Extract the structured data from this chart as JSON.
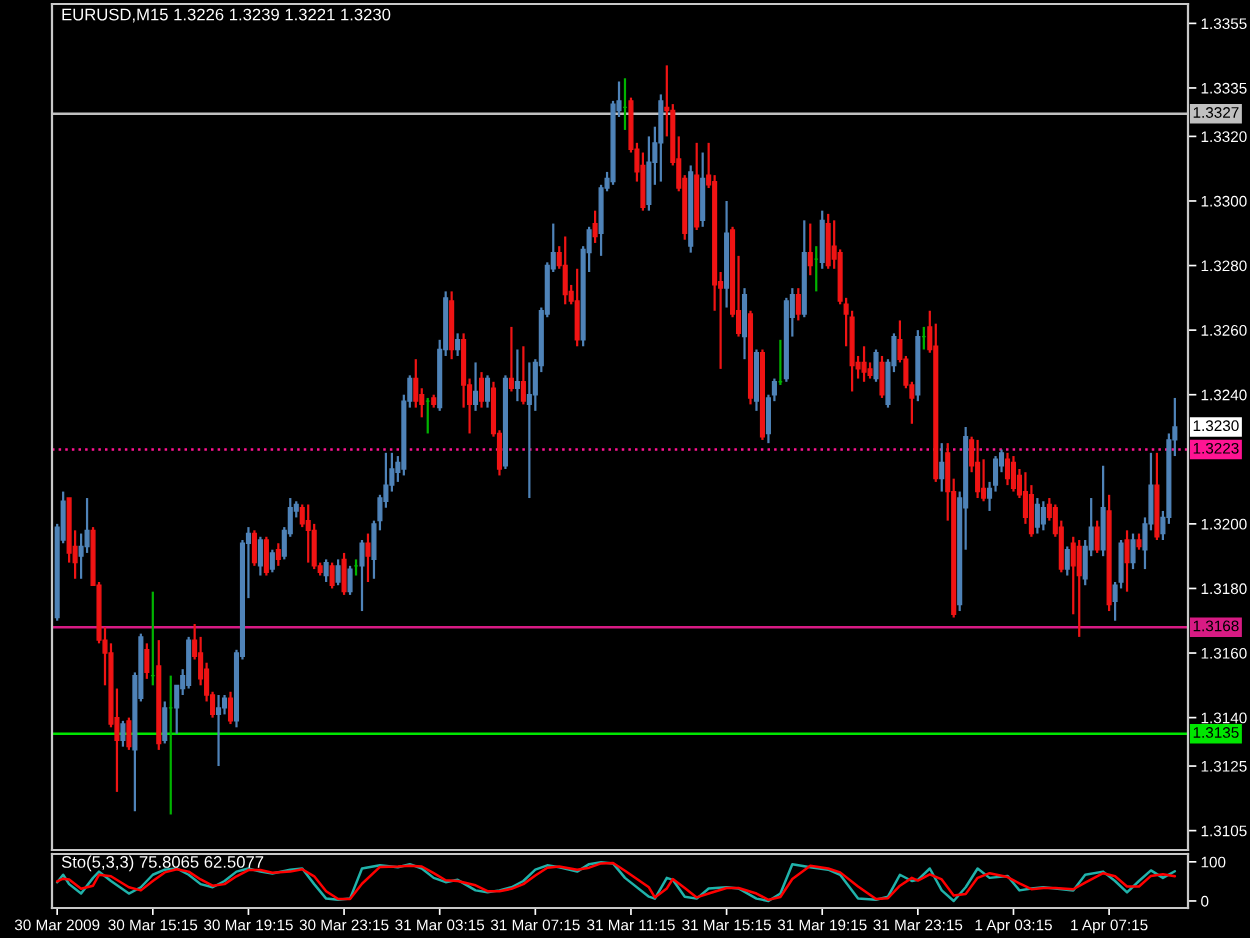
{
  "chart_data": [
    {
      "type": "candlestick",
      "title": "EURUSD,M15 1.3226 1.3239 1.3221 1.3230",
      "x": [
        "2009-03-30T11:15",
        "2009-03-30T11:30",
        "2009-03-30T11:45",
        "2009-03-30T12:00",
        "2009-03-30T12:15",
        "2009-03-30T12:30",
        "2009-03-30T12:45",
        "2009-03-30T13:00",
        "2009-03-30T13:15",
        "2009-03-30T13:30",
        "2009-03-30T13:45",
        "2009-03-30T14:00",
        "2009-03-30T14:15",
        "2009-03-30T14:30",
        "2009-03-30T14:45",
        "2009-03-30T15:00",
        "2009-03-30T15:15",
        "2009-03-30T15:30",
        "2009-03-30T15:45",
        "2009-03-30T16:00",
        "2009-03-30T16:15",
        "2009-03-30T16:30",
        "2009-03-30T16:45",
        "2009-03-30T17:00",
        "2009-03-30T17:15",
        "2009-03-30T17:30",
        "2009-03-30T17:45",
        "2009-03-30T18:00",
        "2009-03-30T18:15",
        "2009-03-30T18:30",
        "2009-03-30T18:45",
        "2009-03-30T19:00",
        "2009-03-30T19:15",
        "2009-03-30T19:30",
        "2009-03-30T19:45",
        "2009-03-30T20:00",
        "2009-03-30T20:15",
        "2009-03-30T20:30",
        "2009-03-30T20:45",
        "2009-03-30T21:00",
        "2009-03-30T21:15",
        "2009-03-30T21:30",
        "2009-03-30T21:45",
        "2009-03-30T22:00",
        "2009-03-30T22:15",
        "2009-03-30T22:30",
        "2009-03-30T22:45",
        "2009-03-30T23:00",
        "2009-03-30T23:15",
        "2009-03-30T23:30",
        "2009-03-30T23:45",
        "2009-03-31T00:00",
        "2009-03-31T00:15",
        "2009-03-31T00:30",
        "2009-03-31T00:45",
        "2009-03-31T01:00",
        "2009-03-31T01:15",
        "2009-03-31T01:30",
        "2009-03-31T01:45",
        "2009-03-31T02:00",
        "2009-03-31T02:15",
        "2009-03-31T02:30",
        "2009-03-31T02:45",
        "2009-03-31T03:00",
        "2009-03-31T03:15",
        "2009-03-31T03:30",
        "2009-03-31T03:45",
        "2009-03-31T04:00",
        "2009-03-31T04:15",
        "2009-03-31T04:30",
        "2009-03-31T04:45",
        "2009-03-31T05:00",
        "2009-03-31T05:15",
        "2009-03-31T05:30",
        "2009-03-31T05:45",
        "2009-03-31T06:00",
        "2009-03-31T06:15",
        "2009-03-31T06:30",
        "2009-03-31T06:45",
        "2009-03-31T07:00",
        "2009-03-31T07:15",
        "2009-03-31T07:30",
        "2009-03-31T07:45",
        "2009-03-31T08:00",
        "2009-03-31T08:15",
        "2009-03-31T08:30",
        "2009-03-31T08:45",
        "2009-03-31T09:00",
        "2009-03-31T09:15",
        "2009-03-31T09:30",
        "2009-03-31T09:45",
        "2009-03-31T10:00",
        "2009-03-31T10:15",
        "2009-03-31T10:30",
        "2009-03-31T10:45",
        "2009-03-31T11:00",
        "2009-03-31T11:15",
        "2009-03-31T11:30",
        "2009-03-31T11:45",
        "2009-03-31T12:00",
        "2009-03-31T12:15",
        "2009-03-31T12:30",
        "2009-03-31T12:45",
        "2009-03-31T13:00",
        "2009-03-31T13:15",
        "2009-03-31T13:30",
        "2009-03-31T13:45",
        "2009-03-31T14:00",
        "2009-03-31T14:15",
        "2009-03-31T14:30",
        "2009-03-31T14:45",
        "2009-03-31T15:00",
        "2009-03-31T15:15",
        "2009-03-31T15:30",
        "2009-03-31T15:45",
        "2009-03-31T16:00",
        "2009-03-31T16:15",
        "2009-03-31T16:30",
        "2009-03-31T16:45",
        "2009-03-31T17:00",
        "2009-03-31T17:15",
        "2009-03-31T17:30",
        "2009-03-31T17:45",
        "2009-03-31T18:00",
        "2009-03-31T18:15",
        "2009-03-31T18:30",
        "2009-03-31T18:45",
        "2009-03-31T19:00",
        "2009-03-31T19:15",
        "2009-03-31T19:30",
        "2009-03-31T19:45",
        "2009-03-31T20:00",
        "2009-03-31T20:15",
        "2009-03-31T20:30",
        "2009-03-31T20:45",
        "2009-03-31T21:00",
        "2009-03-31T21:15",
        "2009-03-31T21:30",
        "2009-03-31T21:45",
        "2009-03-31T22:00",
        "2009-03-31T22:15",
        "2009-03-31T22:30",
        "2009-03-31T22:45",
        "2009-03-31T23:00",
        "2009-03-31T23:15",
        "2009-03-31T23:30",
        "2009-03-31T23:45",
        "2009-04-01T00:00",
        "2009-04-01T00:15",
        "2009-04-01T00:30",
        "2009-04-01T00:45",
        "2009-04-01T01:00",
        "2009-04-01T01:15",
        "2009-04-01T01:30",
        "2009-04-01T01:45",
        "2009-04-01T02:00",
        "2009-04-01T02:15",
        "2009-04-01T02:30",
        "2009-04-01T02:45",
        "2009-04-01T03:00",
        "2009-04-01T03:15",
        "2009-04-01T03:30",
        "2009-04-01T03:45",
        "2009-04-01T04:00",
        "2009-04-01T04:15",
        "2009-04-01T04:30",
        "2009-04-01T04:45",
        "2009-04-01T05:00",
        "2009-04-01T05:15",
        "2009-04-01T05:30",
        "2009-04-01T05:45",
        "2009-04-01T06:00",
        "2009-04-01T06:15",
        "2009-04-01T06:30",
        "2009-04-01T06:45",
        "2009-04-01T07:00",
        "2009-04-01T07:15",
        "2009-04-01T07:30",
        "2009-04-01T07:45",
        "2009-04-01T08:00",
        "2009-04-01T08:15",
        "2009-04-01T08:30",
        "2009-04-01T08:45",
        "2009-04-01T09:00",
        "2009-04-01T09:15",
        "2009-04-01T09:30",
        "2009-04-01T09:45",
        "2009-04-01T10:00"
      ],
      "ohlc": [
        [
          1.3171,
          1.32,
          1.317,
          1.3199
        ],
        [
          1.3195,
          1.321,
          1.3194,
          1.3207
        ],
        [
          1.3208,
          1.3208,
          1.3188,
          1.3191
        ],
        [
          1.3193,
          1.3198,
          1.3183,
          1.3188
        ],
        [
          1.319,
          1.3197,
          1.3183,
          1.3193
        ],
        [
          1.3193,
          1.3208,
          1.3191,
          1.3198
        ],
        [
          1.3198,
          1.3199,
          1.3181,
          1.3181
        ],
        [
          1.3181,
          1.3182,
          1.3163,
          1.3164
        ],
        [
          1.3164,
          1.3168,
          1.315,
          1.316
        ],
        [
          1.316,
          1.3163,
          1.3137,
          1.3138
        ],
        [
          1.314,
          1.3149,
          1.3117,
          1.3133
        ],
        [
          1.3133,
          1.3139,
          1.3131,
          1.3138
        ],
        [
          1.3139,
          1.314,
          1.313,
          1.3131
        ],
        [
          1.313,
          1.3154,
          1.3111,
          1.3153
        ],
        [
          1.3146,
          1.3166,
          1.3145,
          1.3165
        ],
        [
          1.3161,
          1.3163,
          1.3152,
          1.3154
        ],
        [
          1.3153,
          1.3179,
          1.315,
          1.3153
        ],
        [
          1.3156,
          1.3164,
          1.313,
          1.3132
        ],
        [
          1.3133,
          1.3145,
          1.3132,
          1.3143
        ],
        [
          1.3143,
          1.3153,
          1.311,
          1.3143
        ],
        [
          1.3143,
          1.315,
          1.3135,
          1.315
        ],
        [
          1.3149,
          1.3155,
          1.3147,
          1.3153
        ],
        [
          1.315,
          1.3165,
          1.3149,
          1.3164
        ],
        [
          1.3164,
          1.3169,
          1.3158,
          1.3159
        ],
        [
          1.316,
          1.3165,
          1.315,
          1.3152
        ],
        [
          1.3155,
          1.3157,
          1.3145,
          1.3147
        ],
        [
          1.3147,
          1.3148,
          1.314,
          1.3141
        ],
        [
          1.3141,
          1.3147,
          1.3125,
          1.3143
        ],
        [
          1.3143,
          1.3147,
          1.3141,
          1.3146
        ],
        [
          1.3146,
          1.3148,
          1.3138,
          1.3139
        ],
        [
          1.3139,
          1.3161,
          1.3137,
          1.316
        ],
        [
          1.3159,
          1.3195,
          1.3158,
          1.3194
        ],
        [
          1.3194,
          1.3199,
          1.3177,
          1.3197
        ],
        [
          1.3197,
          1.3198,
          1.3187,
          1.3188
        ],
        [
          1.3187,
          1.3196,
          1.3184,
          1.3195
        ],
        [
          1.3195,
          1.3196,
          1.3184,
          1.3185
        ],
        [
          1.3186,
          1.3192,
          1.3185,
          1.3191
        ],
        [
          1.3192,
          1.3194,
          1.3187,
          1.3189
        ],
        [
          1.319,
          1.3199,
          1.3189,
          1.3198
        ],
        [
          1.3197,
          1.3208,
          1.3196,
          1.3205
        ],
        [
          1.3204,
          1.3207,
          1.3202,
          1.3206
        ],
        [
          1.3205,
          1.3206,
          1.3199,
          1.32
        ],
        [
          1.3201,
          1.3206,
          1.3188,
          1.3198
        ],
        [
          1.3198,
          1.32,
          1.3186,
          1.3187
        ],
        [
          1.3187,
          1.3188,
          1.3184,
          1.3185
        ],
        [
          1.3184,
          1.3189,
          1.3182,
          1.3188
        ],
        [
          1.3187,
          1.3188,
          1.318,
          1.3181
        ],
        [
          1.3182,
          1.3189,
          1.3181,
          1.3187
        ],
        [
          1.3189,
          1.3191,
          1.3178,
          1.3179
        ],
        [
          1.3179,
          1.3187,
          1.3178,
          1.3186
        ],
        [
          1.3187,
          1.3189,
          1.3184,
          1.3187
        ],
        [
          1.3187,
          1.3195,
          1.3173,
          1.3194
        ],
        [
          1.3194,
          1.3197,
          1.3182,
          1.319
        ],
        [
          1.3189,
          1.3201,
          1.3183,
          1.32
        ],
        [
          1.3201,
          1.3209,
          1.3198,
          1.3208
        ],
        [
          1.3207,
          1.3222,
          1.3205,
          1.3212
        ],
        [
          1.3212,
          1.3222,
          1.321,
          1.3217
        ],
        [
          1.3216,
          1.3221,
          1.3213,
          1.3219
        ],
        [
          1.3217,
          1.324,
          1.3215,
          1.3238
        ],
        [
          1.3238,
          1.3246,
          1.3236,
          1.3245
        ],
        [
          1.3245,
          1.3251,
          1.3236,
          1.3238
        ],
        [
          1.324,
          1.3242,
          1.3233,
          1.3237
        ],
        [
          1.3238,
          1.3239,
          1.3228,
          1.3238
        ],
        [
          1.3239,
          1.324,
          1.3236,
          1.3237
        ],
        [
          1.3236,
          1.3257,
          1.3235,
          1.3254
        ],
        [
          1.3254,
          1.3272,
          1.3252,
          1.327
        ],
        [
          1.3269,
          1.3272,
          1.3251,
          1.3254
        ],
        [
          1.3254,
          1.3259,
          1.3252,
          1.3257
        ],
        [
          1.3257,
          1.3259,
          1.3236,
          1.3243
        ],
        [
          1.3243,
          1.3245,
          1.3228,
          1.3237
        ],
        [
          1.3237,
          1.325,
          1.3235,
          1.3241
        ],
        [
          1.3245,
          1.3247,
          1.3236,
          1.3238
        ],
        [
          1.3238,
          1.3246,
          1.3236,
          1.3245
        ],
        [
          1.3242,
          1.3244,
          1.3227,
          1.3228
        ],
        [
          1.3228,
          1.3229,
          1.3215,
          1.3217
        ],
        [
          1.3218,
          1.3246,
          1.3217,
          1.3245
        ],
        [
          1.3245,
          1.3261,
          1.3241,
          1.3242
        ],
        [
          1.3242,
          1.3254,
          1.3238,
          1.3244
        ],
        [
          1.3244,
          1.3255,
          1.3237,
          1.3238
        ],
        [
          1.3237,
          1.325,
          1.3208,
          1.324
        ],
        [
          1.324,
          1.3251,
          1.3235,
          1.325
        ],
        [
          1.3249,
          1.3267,
          1.3247,
          1.3266
        ],
        [
          1.3265,
          1.3281,
          1.3264,
          1.328
        ],
        [
          1.3279,
          1.3293,
          1.3278,
          1.3284
        ],
        [
          1.3284,
          1.3286,
          1.3279,
          1.328
        ],
        [
          1.328,
          1.3289,
          1.3268,
          1.3271
        ],
        [
          1.3272,
          1.3274,
          1.3268,
          1.3269
        ],
        [
          1.3269,
          1.3279,
          1.3255,
          1.3257
        ],
        [
          1.3257,
          1.3286,
          1.3255,
          1.3285
        ],
        [
          1.3284,
          1.3292,
          1.3278,
          1.3291
        ],
        [
          1.3293,
          1.3297,
          1.3287,
          1.3289
        ],
        [
          1.329,
          1.3305,
          1.3283,
          1.3304
        ],
        [
          1.3304,
          1.3309,
          1.3303,
          1.3307
        ],
        [
          1.3306,
          1.3331,
          1.3305,
          1.333
        ],
        [
          1.3328,
          1.3337,
          1.3326,
          1.3331
        ],
        [
          1.3329,
          1.3338,
          1.3322,
          1.3329
        ],
        [
          1.3331,
          1.3332,
          1.3315,
          1.3316
        ],
        [
          1.3316,
          1.3318,
          1.3306,
          1.3309
        ],
        [
          1.3311,
          1.3315,
          1.3297,
          1.3298
        ],
        [
          1.3299,
          1.332,
          1.3297,
          1.3312
        ],
        [
          1.3312,
          1.3323,
          1.3305,
          1.3318
        ],
        [
          1.3318,
          1.3333,
          1.3306,
          1.3331
        ],
        [
          1.3329,
          1.3342,
          1.332,
          1.3328
        ],
        [
          1.3328,
          1.333,
          1.3311,
          1.3312
        ],
        [
          1.3313,
          1.332,
          1.3303,
          1.3304
        ],
        [
          1.3307,
          1.3308,
          1.3288,
          1.329
        ],
        [
          1.3286,
          1.3311,
          1.3284,
          1.3309
        ],
        [
          1.3308,
          1.3318,
          1.3291,
          1.3292
        ],
        [
          1.3294,
          1.3315,
          1.3292,
          1.3307
        ],
        [
          1.3308,
          1.3318,
          1.3304,
          1.3305
        ],
        [
          1.3306,
          1.3308,
          1.3266,
          1.3274
        ],
        [
          1.3275,
          1.3278,
          1.3248,
          1.3273
        ],
        [
          1.3273,
          1.33,
          1.3267,
          1.329
        ],
        [
          1.3291,
          1.3292,
          1.3264,
          1.3265
        ],
        [
          1.3266,
          1.3283,
          1.3258,
          1.3259
        ],
        [
          1.3258,
          1.3273,
          1.3251,
          1.3271
        ],
        [
          1.3265,
          1.3266,
          1.3237,
          1.3239
        ],
        [
          1.3238,
          1.3254,
          1.3235,
          1.3253
        ],
        [
          1.3253,
          1.3254,
          1.3226,
          1.3227
        ],
        [
          1.3228,
          1.324,
          1.3225,
          1.3239
        ],
        [
          1.324,
          1.3245,
          1.3238,
          1.3244
        ],
        [
          1.3244,
          1.3257,
          1.3243,
          1.3244
        ],
        [
          1.3245,
          1.327,
          1.3244,
          1.3269
        ],
        [
          1.3264,
          1.3273,
          1.3258,
          1.3271
        ],
        [
          1.3271,
          1.3273,
          1.3263,
          1.3265
        ],
        [
          1.3265,
          1.3294,
          1.3264,
          1.3284
        ],
        [
          1.3284,
          1.3293,
          1.3277,
          1.328
        ],
        [
          1.3282,
          1.3286,
          1.3272,
          1.3282
        ],
        [
          1.3281,
          1.3297,
          1.3279,
          1.3294
        ],
        [
          1.3293,
          1.3296,
          1.3279,
          1.328
        ],
        [
          1.3286,
          1.3294,
          1.3279,
          1.3282
        ],
        [
          1.3284,
          1.3285,
          1.3268,
          1.3269
        ],
        [
          1.3268,
          1.327,
          1.3255,
          1.3265
        ],
        [
          1.3264,
          1.3266,
          1.3241,
          1.3249
        ],
        [
          1.325,
          1.3252,
          1.3245,
          1.3248
        ],
        [
          1.325,
          1.3255,
          1.3244,
          1.3247
        ],
        [
          1.3248,
          1.325,
          1.3245,
          1.3246
        ],
        [
          1.3245,
          1.3254,
          1.3244,
          1.3253
        ],
        [
          1.325,
          1.3252,
          1.3239,
          1.324
        ],
        [
          1.3237,
          1.3251,
          1.3236,
          1.325
        ],
        [
          1.3249,
          1.3259,
          1.3247,
          1.3258
        ],
        [
          1.3257,
          1.3263,
          1.325,
          1.3251
        ],
        [
          1.3251,
          1.3252,
          1.3242,
          1.3243
        ],
        [
          1.3243,
          1.3244,
          1.3231,
          1.3239
        ],
        [
          1.324,
          1.326,
          1.3238,
          1.3258
        ],
        [
          1.3258,
          1.3261,
          1.3254,
          1.3258
        ],
        [
          1.3261,
          1.3266,
          1.3253,
          1.3254
        ],
        [
          1.3255,
          1.3262,
          1.3213,
          1.3214
        ],
        [
          1.3214,
          1.3225,
          1.321,
          1.3219
        ],
        [
          1.3222,
          1.3225,
          1.3201,
          1.321
        ],
        [
          1.321,
          1.3214,
          1.3171,
          1.3172
        ],
        [
          1.3175,
          1.321,
          1.3173,
          1.3208
        ],
        [
          1.3205,
          1.323,
          1.3192,
          1.3227
        ],
        [
          1.3226,
          1.3227,
          1.3216,
          1.3218
        ],
        [
          1.3219,
          1.3226,
          1.3208,
          1.321
        ],
        [
          1.3211,
          1.322,
          1.3207,
          1.3208
        ],
        [
          1.3208,
          1.3213,
          1.3204,
          1.3211
        ],
        [
          1.3212,
          1.3221,
          1.321,
          1.322
        ],
        [
          1.3218,
          1.3223,
          1.3216,
          1.3222
        ],
        [
          1.322,
          1.3222,
          1.3212,
          1.3214
        ],
        [
          1.3219,
          1.3221,
          1.321,
          1.3211
        ],
        [
          1.3215,
          1.3217,
          1.3208,
          1.3209
        ],
        [
          1.321,
          1.3216,
          1.32,
          1.3202
        ],
        [
          1.3209,
          1.3212,
          1.3196,
          1.3197
        ],
        [
          1.3199,
          1.3208,
          1.3197,
          1.3206
        ],
        [
          1.32,
          1.3207,
          1.3198,
          1.3205
        ],
        [
          1.3206,
          1.3208,
          1.3201,
          1.3202
        ],
        [
          1.3205,
          1.3206,
          1.3196,
          1.3197
        ],
        [
          1.3199,
          1.3201,
          1.3185,
          1.3186
        ],
        [
          1.3186,
          1.3193,
          1.3184,
          1.3192
        ],
        [
          1.3194,
          1.3196,
          1.3172,
          1.3187
        ],
        [
          1.3193,
          1.3195,
          1.3165,
          1.3184
        ],
        [
          1.3183,
          1.3195,
          1.3181,
          1.3193
        ],
        [
          1.3192,
          1.3208,
          1.319,
          1.3199
        ],
        [
          1.3199,
          1.3201,
          1.3191,
          1.3192
        ],
        [
          1.3192,
          1.3218,
          1.319,
          1.3205
        ],
        [
          1.3204,
          1.3209,
          1.3173,
          1.3175
        ],
        [
          1.3176,
          1.3182,
          1.317,
          1.3181
        ],
        [
          1.3182,
          1.3195,
          1.318,
          1.3194
        ],
        [
          1.3195,
          1.3198,
          1.3179,
          1.3188
        ],
        [
          1.3188,
          1.3197,
          1.3186,
          1.3195
        ],
        [
          1.3195,
          1.3197,
          1.3192,
          1.3193
        ],
        [
          1.3192,
          1.3202,
          1.3186,
          1.32
        ],
        [
          1.32,
          1.3222,
          1.3198,
          1.3212
        ],
        [
          1.3212,
          1.3222,
          1.3195,
          1.3196
        ],
        [
          1.3197,
          1.3204,
          1.3195,
          1.3202
        ],
        [
          1.3202,
          1.3228,
          1.32,
          1.3226
        ],
        [
          1.3226,
          1.3239,
          1.3221,
          1.323
        ]
      ],
      "colors": [
        "#4f83b8",
        "#4f83b8",
        "#f01414",
        "#f01414",
        "#4f83b8",
        "#4f83b8",
        "#f01414",
        "#f01414",
        "#f01414",
        "#f01414",
        "#f01414",
        "#4f83b8",
        "#f01414",
        "#4f83b8",
        "#4f83b8",
        "#f01414",
        "#00b400",
        "#f01414",
        "#4f83b8",
        "#00b400",
        "#4f83b8",
        "#4f83b8",
        "#4f83b8",
        "#f01414",
        "#f01414",
        "#f01414",
        "#f01414",
        "#4f83b8",
        "#4f83b8",
        "#f01414",
        "#4f83b8",
        "#4f83b8",
        "#4f83b8",
        "#f01414",
        "#4f83b8",
        "#f01414",
        "#4f83b8",
        "#f01414",
        "#4f83b8",
        "#4f83b8",
        "#4f83b8",
        "#f01414",
        "#f01414",
        "#f01414",
        "#f01414",
        "#4f83b8",
        "#f01414",
        "#4f83b8",
        "#f01414",
        "#4f83b8",
        "#00b400",
        "#4f83b8",
        "#f01414",
        "#4f83b8",
        "#4f83b8",
        "#4f83b8",
        "#4f83b8",
        "#4f83b8",
        "#4f83b8",
        "#4f83b8",
        "#f01414",
        "#f01414",
        "#00b400",
        "#f01414",
        "#4f83b8",
        "#4f83b8",
        "#f01414",
        "#4f83b8",
        "#f01414",
        "#f01414",
        "#4f83b8",
        "#f01414",
        "#4f83b8",
        "#f01414",
        "#f01414",
        "#4f83b8",
        "#f01414",
        "#4f83b8",
        "#f01414",
        "#4f83b8",
        "#4f83b8",
        "#4f83b8",
        "#4f83b8",
        "#4f83b8",
        "#f01414",
        "#f01414",
        "#f01414",
        "#f01414",
        "#4f83b8",
        "#4f83b8",
        "#f01414",
        "#4f83b8",
        "#4f83b8",
        "#4f83b8",
        "#4f83b8",
        "#00b400",
        "#f01414",
        "#f01414",
        "#f01414",
        "#4f83b8",
        "#4f83b8",
        "#4f83b8",
        "#f01414",
        "#f01414",
        "#f01414",
        "#f01414",
        "#4f83b8",
        "#f01414",
        "#4f83b8",
        "#f01414",
        "#f01414",
        "#f01414",
        "#4f83b8",
        "#f01414",
        "#f01414",
        "#4f83b8",
        "#f01414",
        "#4f83b8",
        "#f01414",
        "#4f83b8",
        "#4f83b8",
        "#00b400",
        "#4f83b8",
        "#4f83b8",
        "#f01414",
        "#4f83b8",
        "#f01414",
        "#00b400",
        "#4f83b8",
        "#f01414",
        "#f01414",
        "#f01414",
        "#f01414",
        "#f01414",
        "#f01414",
        "#f01414",
        "#f01414",
        "#4f83b8",
        "#f01414",
        "#4f83b8",
        "#4f83b8",
        "#f01414",
        "#f01414",
        "#f01414",
        "#4f83b8",
        "#00b400",
        "#f01414",
        "#f01414",
        "#4f83b8",
        "#f01414",
        "#f01414",
        "#4f83b8",
        "#4f83b8",
        "#f01414",
        "#f01414",
        "#f01414",
        "#4f83b8",
        "#4f83b8",
        "#4f83b8",
        "#f01414",
        "#f01414",
        "#f01414",
        "#f01414",
        "#f01414",
        "#4f83b8",
        "#4f83b8",
        "#f01414",
        "#f01414",
        "#f01414",
        "#4f83b8",
        "#f01414",
        "#f01414",
        "#4f83b8",
        "#4f83b8",
        "#f01414",
        "#4f83b8",
        "#f01414",
        "#4f83b8",
        "#4f83b8",
        "#f01414",
        "#4f83b8",
        "#f01414",
        "#4f83b8",
        "#4f83b8",
        "#f01414",
        "#4f83b8",
        "#4f83b8",
        "#4f83b8"
      ],
      "xlim": [
        "2009-03-30T11:02",
        "2009-04-01T10:33"
      ],
      "ylim": [
        1.3099,
        1.3361
      ],
      "yticks": [
        {
          "value": 1.3105,
          "label": "1.3105"
        },
        {
          "value": 1.3125,
          "label": "1.3125"
        },
        {
          "value": 1.314,
          "label": "1.3140"
        },
        {
          "value": 1.316,
          "label": "1.3160"
        },
        {
          "value": 1.318,
          "label": "1.3180"
        },
        {
          "value": 1.32,
          "label": "1.3200"
        },
        {
          "value": 1.324,
          "label": "1.3240"
        },
        {
          "value": 1.326,
          "label": "1.3260"
        },
        {
          "value": 1.328,
          "label": "1.3280"
        },
        {
          "value": 1.33,
          "label": "1.3300"
        },
        {
          "value": 1.332,
          "label": "1.3320"
        },
        {
          "value": 1.3335,
          "label": "1.3335"
        },
        {
          "value": 1.3355,
          "label": "1.3355"
        }
      ],
      "tick_labels": "y",
      "ref_lines": [
        {
          "axis": "y",
          "value": 1.3327,
          "label": "1.3327",
          "color": "#c0c0c0",
          "line_style": "solid"
        },
        {
          "axis": "y",
          "value": 1.3223,
          "label": "1.3223",
          "color": "#ff1493",
          "line_style": "dotted"
        },
        {
          "axis": "y",
          "value": 1.3168,
          "label": "1.3168",
          "color": "#d81b84",
          "line_style": "solid"
        },
        {
          "axis": "y",
          "value": 1.3135,
          "label": "1.3135",
          "color": "#00e600",
          "line_style": "solid"
        }
      ],
      "annotations": [
        {
          "text": "1.3230",
          "y": 1.323
        }
      ]
    },
    {
      "type": "line",
      "title": "Sto(5,3,3) 75.8065 62.5077",
      "x": [
        "2009-03-30T11:15",
        "2009-03-30T11:30",
        "2009-03-30T11:45",
        "2009-03-30T12:15",
        "2009-03-30T12:45",
        "2009-03-30T13:00",
        "2009-03-30T13:30",
        "2009-03-30T14:15",
        "2009-03-30T14:45",
        "2009-03-30T15:15",
        "2009-03-30T15:45",
        "2009-03-30T16:15",
        "2009-03-30T16:45",
        "2009-03-30T17:15",
        "2009-03-30T17:45",
        "2009-03-30T18:15",
        "2009-03-30T18:45",
        "2009-03-30T19:15",
        "2009-03-30T19:45",
        "2009-03-30T20:15",
        "2009-03-30T21:00",
        "2009-03-30T21:30",
        "2009-03-30T22:00",
        "2009-03-30T22:30",
        "2009-03-30T23:00",
        "2009-03-30T23:30",
        "2009-03-31T00:00",
        "2009-03-31T00:45",
        "2009-03-31T01:30",
        "2009-03-31T02:00",
        "2009-03-31T02:30",
        "2009-03-31T03:00",
        "2009-03-31T03:30",
        "2009-03-31T04:00",
        "2009-03-31T04:45",
        "2009-03-31T05:15",
        "2009-03-31T05:45",
        "2009-03-31T06:15",
        "2009-03-31T06:45",
        "2009-03-31T07:15",
        "2009-03-31T07:45",
        "2009-03-31T08:15",
        "2009-03-31T09:00",
        "2009-03-31T09:30",
        "2009-03-31T10:00",
        "2009-03-31T10:30",
        "2009-03-31T11:00",
        "2009-03-31T12:00",
        "2009-03-31T12:15",
        "2009-03-31T12:45",
        "2009-03-31T13:00",
        "2009-03-31T13:30",
        "2009-03-31T14:00",
        "2009-03-31T14:30",
        "2009-03-31T15:15",
        "2009-03-31T15:45",
        "2009-03-31T16:30",
        "2009-03-31T17:00",
        "2009-03-31T17:30",
        "2009-03-31T18:00",
        "2009-03-31T18:45",
        "2009-03-31T19:30",
        "2009-03-31T20:00",
        "2009-03-31T20:45",
        "2009-03-31T21:30",
        "2009-03-31T22:00",
        "2009-03-31T22:30",
        "2009-03-31T23:00",
        "2009-03-31T23:15",
        "2009-03-31T23:45",
        "2009-04-01T00:15",
        "2009-04-01T00:45",
        "2009-04-01T01:15",
        "2009-04-01T01:45",
        "2009-04-01T02:15",
        "2009-04-01T03:00",
        "2009-04-01T03:30",
        "2009-04-01T04:00",
        "2009-04-01T04:30",
        "2009-04-01T05:00",
        "2009-04-01T05:45",
        "2009-04-01T06:15",
        "2009-04-01T07:00",
        "2009-04-01T07:30",
        "2009-04-01T08:00",
        "2009-04-01T08:30",
        "2009-04-01T09:00",
        "2009-04-01T09:30",
        "2009-04-01T10:00"
      ],
      "series": [
        {
          "color": "#20b2aa",
          "values": [
            48,
            67,
            43,
            19,
            59,
            75,
            51,
            19,
            35,
            67,
            80,
            83,
            67,
            43,
            35,
            51,
            75,
            83,
            75,
            70,
            80,
            83,
            43,
            6,
            3,
            6,
            83,
            91,
            86,
            94,
            83,
            59,
            48,
            54,
            27,
            22,
            27,
            35,
            51,
            80,
            91,
            86,
            75,
            94,
            99,
            96,
            59,
            11,
            6,
            59,
            54,
            11,
            6,
            32,
            35,
            32,
            6,
            0,
            19,
            94,
            86,
            80,
            67,
            6,
            3,
            11,
            67,
            51,
            54,
            83,
            27,
            0,
            35,
            83,
            59,
            64,
            27,
            32,
            35,
            32,
            27,
            67,
            75,
            51,
            22,
            51,
            78,
            59,
            76
          ]
        },
        {
          "color": "#ff0000",
          "values": [
            50,
            57,
            55,
            31,
            39,
            67,
            63,
            35,
            27,
            51,
            73,
            81,
            75,
            55,
            39,
            43,
            63,
            79,
            79,
            72,
            75,
            81,
            63,
            25,
            5,
            5,
            44,
            87,
            88,
            90,
            88,
            71,
            53,
            51,
            40,
            25,
            25,
            31,
            43,
            65,
            85,
            88,
            80,
            85,
            96,
            97,
            77,
            35,
            9,
            32,
            56,
            33,
            9,
            19,
            33,
            33,
            19,
            3,
            10,
            56,
            90,
            83,
            73,
            37,
            5,
            7,
            39,
            59,
            52,
            68,
            55,
            14,
            18,
            59,
            71,
            61,
            45,
            30,
            33,
            33,
            30,
            47,
            71,
            63,
            37,
            37,
            64,
            68,
            63
          ]
        }
      ],
      "xlim": [
        "2009-03-30T11:02",
        "2009-04-01T10:33"
      ],
      "xticks": [
        {
          "value": "2009-03-30T11:15",
          "label": "30 Mar 2009"
        },
        {
          "value": "2009-03-30T15:15",
          "label": "30 Mar 15:15"
        },
        {
          "value": "2009-03-30T19:15",
          "label": "30 Mar 19:15"
        },
        {
          "value": "2009-03-30T23:15",
          "label": "30 Mar 23:15"
        },
        {
          "value": "2009-03-31T03:15",
          "label": "31 Mar 03:15"
        },
        {
          "value": "2009-03-31T07:15",
          "label": "31 Mar 07:15"
        },
        {
          "value": "2009-03-31T11:15",
          "label": "31 Mar 11:15"
        },
        {
          "value": "2009-03-31T15:15",
          "label": "31 Mar 15:15"
        },
        {
          "value": "2009-03-31T19:15",
          "label": "31 Mar 19:15"
        },
        {
          "value": "2009-03-31T23:15",
          "label": "31 Mar 23:15"
        },
        {
          "value": "2009-04-01T03:15",
          "label": "1 Apr 03:15"
        },
        {
          "value": "2009-04-01T07:15",
          "label": "1 Apr 07:15"
        }
      ],
      "ylim": [
        -18,
        120
      ],
      "yticks": [
        0,
        100
      ]
    }
  ]
}
